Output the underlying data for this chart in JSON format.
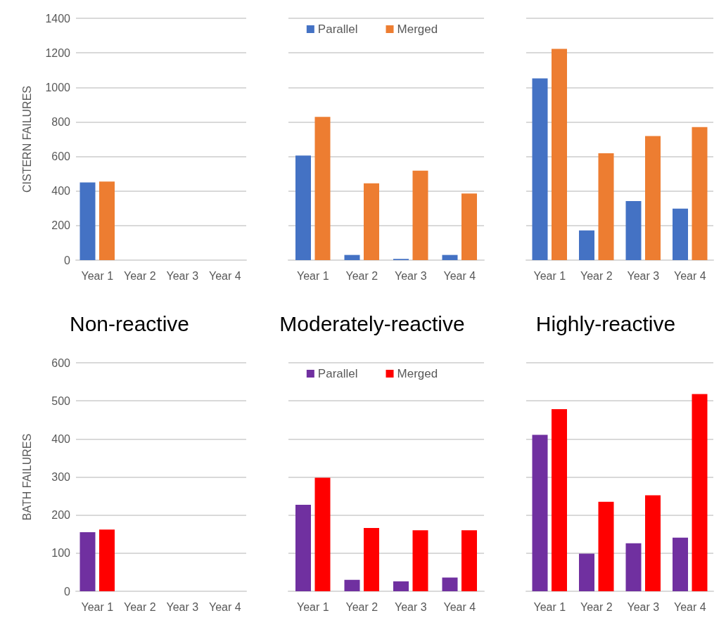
{
  "chart_data": [
    {
      "type": "bar",
      "title": "Non-reactive",
      "ylabel": "CISTERN FAILURES",
      "categories": [
        "Year 1",
        "Year 2",
        "Year 3",
        "Year 4"
      ],
      "series": [
        {
          "color": "#4472c4",
          "values": [
            450,
            0,
            0,
            0
          ]
        },
        {
          "color": "#ed7d31",
          "values": [
            455,
            0,
            0,
            0
          ]
        }
      ],
      "ylim": [
        0,
        1400
      ],
      "yticks": [
        0,
        200,
        400,
        600,
        800,
        1000,
        1200,
        1400
      ],
      "grid": "y",
      "legend": false
    },
    {
      "type": "bar",
      "title": "Moderately-reactive",
      "categories": [
        "Year 1",
        "Year 2",
        "Year 3",
        "Year 4"
      ],
      "series": [
        {
          "name": "Parallel",
          "color": "#4472c4",
          "values": [
            605,
            30,
            7,
            30
          ]
        },
        {
          "name": "Merged",
          "color": "#ed7d31",
          "values": [
            829,
            445,
            518,
            386
          ]
        }
      ],
      "ylim": [
        0,
        1400
      ],
      "yticks": [
        0,
        200,
        400,
        600,
        800,
        1000,
        1200,
        1400
      ],
      "grid": "y",
      "legend": "top",
      "tick_labels": "x"
    },
    {
      "type": "bar",
      "title": "Highly-reactive",
      "categories": [
        "Year 1",
        "Year 2",
        "Year 3",
        "Year 4"
      ],
      "series": [
        {
          "color": "#4472c4",
          "values": [
            1052,
            172,
            342,
            298
          ]
        },
        {
          "color": "#ed7d31",
          "values": [
            1223,
            619,
            718,
            770
          ]
        }
      ],
      "ylim": [
        0,
        1400
      ],
      "yticks": [
        0,
        200,
        400,
        600,
        800,
        1000,
        1200,
        1400
      ],
      "grid": "y",
      "legend": false,
      "tick_labels": "x"
    },
    {
      "type": "bar",
      "ylabel": "BATH FAILURES",
      "categories": [
        "Year 1",
        "Year 2",
        "Year 3",
        "Year 4"
      ],
      "series": [
        {
          "color": "#7030a0",
          "values": [
            155,
            0,
            0,
            0
          ]
        },
        {
          "color": "#ff0000",
          "values": [
            162,
            0,
            0,
            0
          ]
        }
      ],
      "ylim": [
        0,
        600
      ],
      "yticks": [
        0,
        100,
        200,
        300,
        400,
        500,
        600
      ],
      "grid": "y",
      "legend": false
    },
    {
      "type": "bar",
      "categories": [
        "Year 1",
        "Year 2",
        "Year 3",
        "Year 4"
      ],
      "series": [
        {
          "name": "Parallel",
          "color": "#7030a0",
          "values": [
            227,
            30,
            26,
            36
          ]
        },
        {
          "name": "Merged",
          "color": "#ff0000",
          "values": [
            298,
            166,
            160,
            160
          ]
        }
      ],
      "ylim": [
        0,
        600
      ],
      "yticks": [
        0,
        100,
        200,
        300,
        400,
        500,
        600
      ],
      "grid": "y",
      "legend": "top",
      "tick_labels": "x"
    },
    {
      "type": "bar",
      "categories": [
        "Year 1",
        "Year 2",
        "Year 3",
        "Year 4"
      ],
      "series": [
        {
          "color": "#7030a0",
          "values": [
            411,
            99,
            126,
            141
          ]
        },
        {
          "color": "#ff0000",
          "values": [
            478,
            235,
            252,
            518
          ]
        }
      ],
      "ylim": [
        0,
        600
      ],
      "yticks": [
        0,
        100,
        200,
        300,
        400,
        500,
        600
      ],
      "grid": "y",
      "legend": false,
      "tick_labels": "x"
    }
  ]
}
